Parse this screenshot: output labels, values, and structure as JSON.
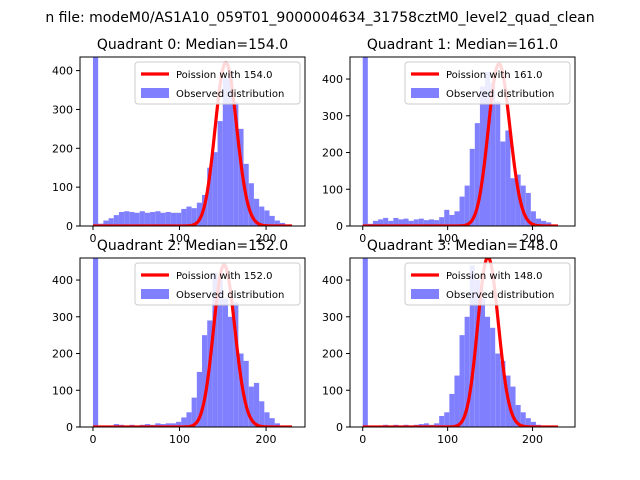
{
  "figure_title": "n file: modeM0/AS1A10_059T01_9000004634_31758cztM0_level2_quad_clean",
  "colors": {
    "hist": "#8080ff",
    "poisson": "#ff0000",
    "axis": "#000000"
  },
  "chart_data": [
    {
      "type": "bar",
      "title": "Quadrant 0: Median=154.0",
      "xlim": [
        -15,
        245
      ],
      "ylim": [
        0,
        435
      ],
      "xticks": [
        0,
        100,
        200
      ],
      "yticks": [
        0,
        100,
        200,
        300,
        400
      ],
      "legend_position": "top-right",
      "legend": [
        "Poission with 154.0",
        "Observed distribution"
      ],
      "mean": 154.0,
      "bin_width": 6,
      "bins": [
        {
          "x": 0,
          "y": 435
        },
        {
          "x": 6,
          "y": 6
        },
        {
          "x": 12,
          "y": 14
        },
        {
          "x": 18,
          "y": 20
        },
        {
          "x": 24,
          "y": 28
        },
        {
          "x": 30,
          "y": 36
        },
        {
          "x": 36,
          "y": 38
        },
        {
          "x": 42,
          "y": 36
        },
        {
          "x": 48,
          "y": 34
        },
        {
          "x": 54,
          "y": 38
        },
        {
          "x": 60,
          "y": 34
        },
        {
          "x": 66,
          "y": 36
        },
        {
          "x": 72,
          "y": 38
        },
        {
          "x": 78,
          "y": 34
        },
        {
          "x": 84,
          "y": 36
        },
        {
          "x": 90,
          "y": 34
        },
        {
          "x": 96,
          "y": 34
        },
        {
          "x": 102,
          "y": 44
        },
        {
          "x": 108,
          "y": 50
        },
        {
          "x": 114,
          "y": 46
        },
        {
          "x": 120,
          "y": 60
        },
        {
          "x": 126,
          "y": 80
        },
        {
          "x": 132,
          "y": 150
        },
        {
          "x": 138,
          "y": 190
        },
        {
          "x": 144,
          "y": 270
        },
        {
          "x": 150,
          "y": 380
        },
        {
          "x": 156,
          "y": 400
        },
        {
          "x": 162,
          "y": 320
        },
        {
          "x": 168,
          "y": 250
        },
        {
          "x": 174,
          "y": 160
        },
        {
          "x": 180,
          "y": 110
        },
        {
          "x": 186,
          "y": 70
        },
        {
          "x": 192,
          "y": 50
        },
        {
          "x": 198,
          "y": 40
        },
        {
          "x": 204,
          "y": 26
        },
        {
          "x": 210,
          "y": 14
        },
        {
          "x": 216,
          "y": 8
        },
        {
          "x": 222,
          "y": 4
        }
      ]
    },
    {
      "type": "bar",
      "title": "Quadrant 1: Median=161.0",
      "xlim": [
        -15,
        250
      ],
      "ylim": [
        0,
        460
      ],
      "xticks": [
        0,
        100,
        200
      ],
      "yticks": [
        0,
        100,
        200,
        300,
        400
      ],
      "legend_position": "top-right",
      "legend": [
        "Poission with 161.0",
        "Observed distribution"
      ],
      "mean": 161.0,
      "bin_width": 6,
      "bins": [
        {
          "x": 0,
          "y": 460
        },
        {
          "x": 6,
          "y": 6
        },
        {
          "x": 12,
          "y": 14
        },
        {
          "x": 18,
          "y": 18
        },
        {
          "x": 24,
          "y": 22
        },
        {
          "x": 30,
          "y": 14
        },
        {
          "x": 36,
          "y": 22
        },
        {
          "x": 42,
          "y": 18
        },
        {
          "x": 48,
          "y": 20
        },
        {
          "x": 54,
          "y": 14
        },
        {
          "x": 60,
          "y": 18
        },
        {
          "x": 66,
          "y": 20
        },
        {
          "x": 72,
          "y": 16
        },
        {
          "x": 78,
          "y": 18
        },
        {
          "x": 84,
          "y": 16
        },
        {
          "x": 90,
          "y": 24
        },
        {
          "x": 96,
          "y": 44
        },
        {
          "x": 102,
          "y": 30
        },
        {
          "x": 108,
          "y": 40
        },
        {
          "x": 114,
          "y": 80
        },
        {
          "x": 120,
          "y": 110
        },
        {
          "x": 126,
          "y": 210
        },
        {
          "x": 132,
          "y": 280
        },
        {
          "x": 138,
          "y": 380
        },
        {
          "x": 144,
          "y": 420
        },
        {
          "x": 150,
          "y": 390
        },
        {
          "x": 156,
          "y": 340
        },
        {
          "x": 162,
          "y": 230
        },
        {
          "x": 168,
          "y": 260
        },
        {
          "x": 174,
          "y": 130
        },
        {
          "x": 180,
          "y": 140
        },
        {
          "x": 186,
          "y": 110
        },
        {
          "x": 192,
          "y": 90
        },
        {
          "x": 198,
          "y": 40
        },
        {
          "x": 204,
          "y": 20
        },
        {
          "x": 210,
          "y": 14
        },
        {
          "x": 216,
          "y": 10
        },
        {
          "x": 222,
          "y": 4
        }
      ]
    },
    {
      "type": "bar",
      "title": "Quadrant 2: Median=152.0",
      "xlim": [
        -15,
        245
      ],
      "ylim": [
        0,
        460
      ],
      "xticks": [
        0,
        100,
        200
      ],
      "yticks": [
        0,
        100,
        200,
        300,
        400
      ],
      "legend_position": "top-right",
      "legend": [
        "Poission with 152.0",
        "Observed distribution"
      ],
      "mean": 152.0,
      "bin_width": 6,
      "bins": [
        {
          "x": 0,
          "y": 460
        },
        {
          "x": 6,
          "y": 2
        },
        {
          "x": 12,
          "y": 4
        },
        {
          "x": 18,
          "y": 4
        },
        {
          "x": 24,
          "y": 8
        },
        {
          "x": 30,
          "y": 6
        },
        {
          "x": 36,
          "y": 4
        },
        {
          "x": 42,
          "y": 6
        },
        {
          "x": 48,
          "y": 4
        },
        {
          "x": 54,
          "y": 6
        },
        {
          "x": 60,
          "y": 8
        },
        {
          "x": 66,
          "y": 6
        },
        {
          "x": 72,
          "y": 10
        },
        {
          "x": 78,
          "y": 8
        },
        {
          "x": 84,
          "y": 10
        },
        {
          "x": 90,
          "y": 10
        },
        {
          "x": 96,
          "y": 14
        },
        {
          "x": 102,
          "y": 26
        },
        {
          "x": 108,
          "y": 40
        },
        {
          "x": 114,
          "y": 80
        },
        {
          "x": 120,
          "y": 150
        },
        {
          "x": 126,
          "y": 250
        },
        {
          "x": 132,
          "y": 290
        },
        {
          "x": 138,
          "y": 420
        },
        {
          "x": 144,
          "y": 400
        },
        {
          "x": 150,
          "y": 350
        },
        {
          "x": 156,
          "y": 300
        },
        {
          "x": 162,
          "y": 340
        },
        {
          "x": 168,
          "y": 200
        },
        {
          "x": 174,
          "y": 180
        },
        {
          "x": 180,
          "y": 110
        },
        {
          "x": 186,
          "y": 120
        },
        {
          "x": 192,
          "y": 70
        },
        {
          "x": 198,
          "y": 40
        },
        {
          "x": 204,
          "y": 24
        },
        {
          "x": 210,
          "y": 10
        },
        {
          "x": 216,
          "y": 4
        }
      ]
    },
    {
      "type": "bar",
      "title": "Quadrant 3: Median=148.0",
      "xlim": [
        -15,
        250
      ],
      "ylim": [
        0,
        460
      ],
      "xticks": [
        0,
        100,
        200
      ],
      "yticks": [
        0,
        100,
        200,
        300,
        400
      ],
      "legend_position": "top-right",
      "legend": [
        "Poission with 148.0",
        "Observed distribution"
      ],
      "mean": 148.0,
      "bin_width": 6,
      "bins": [
        {
          "x": 0,
          "y": 460
        },
        {
          "x": 6,
          "y": 2
        },
        {
          "x": 12,
          "y": 4
        },
        {
          "x": 18,
          "y": 4
        },
        {
          "x": 24,
          "y": 6
        },
        {
          "x": 30,
          "y": 4
        },
        {
          "x": 36,
          "y": 6
        },
        {
          "x": 42,
          "y": 4
        },
        {
          "x": 48,
          "y": 6
        },
        {
          "x": 54,
          "y": 4
        },
        {
          "x": 60,
          "y": 6
        },
        {
          "x": 66,
          "y": 8
        },
        {
          "x": 72,
          "y": 10
        },
        {
          "x": 78,
          "y": 6
        },
        {
          "x": 84,
          "y": 10
        },
        {
          "x": 90,
          "y": 30
        },
        {
          "x": 96,
          "y": 40
        },
        {
          "x": 102,
          "y": 90
        },
        {
          "x": 108,
          "y": 140
        },
        {
          "x": 114,
          "y": 250
        },
        {
          "x": 120,
          "y": 300
        },
        {
          "x": 126,
          "y": 440
        },
        {
          "x": 132,
          "y": 400
        },
        {
          "x": 138,
          "y": 350
        },
        {
          "x": 144,
          "y": 300
        },
        {
          "x": 150,
          "y": 270
        },
        {
          "x": 156,
          "y": 200
        },
        {
          "x": 162,
          "y": 180
        },
        {
          "x": 168,
          "y": 140
        },
        {
          "x": 174,
          "y": 110
        },
        {
          "x": 180,
          "y": 60
        },
        {
          "x": 186,
          "y": 40
        },
        {
          "x": 192,
          "y": 24
        },
        {
          "x": 198,
          "y": 14
        },
        {
          "x": 204,
          "y": 6
        },
        {
          "x": 210,
          "y": 4
        },
        {
          "x": 216,
          "y": 2
        }
      ]
    }
  ]
}
